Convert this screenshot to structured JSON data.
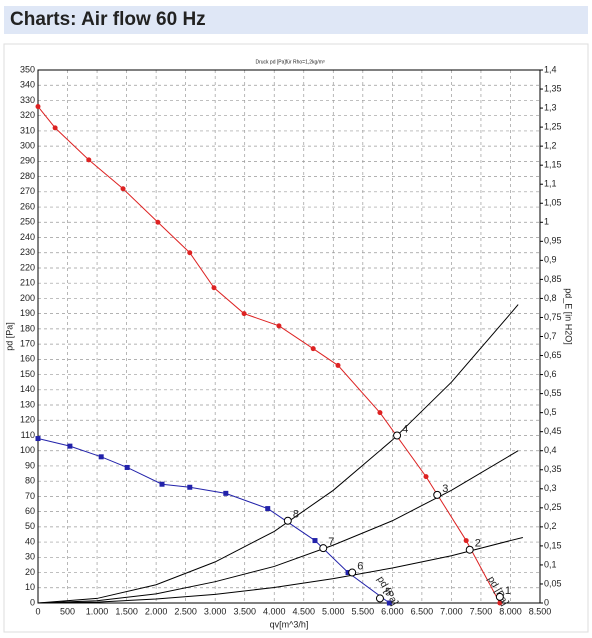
{
  "header": {
    "title": "Charts: Air flow 60 Hz"
  },
  "chart_data": {
    "type": "line",
    "title": "Druck pd [Pa]für Rho=1,2kg/m³",
    "x_label": "qv[m^3/h]",
    "y_label": "pd [Pa]",
    "y2_label": "pd_E [in H2O]",
    "grid": true,
    "xlim": [
      0,
      8500
    ],
    "xticks": [
      0,
      500,
      {
        "value": 1000,
        "label": "1.000"
      },
      {
        "value": 1500,
        "label": "1.500"
      },
      {
        "value": 2000,
        "label": "2.000"
      },
      {
        "value": 2500,
        "label": "2.500"
      },
      {
        "value": 3000,
        "label": "3.000"
      },
      {
        "value": 3500,
        "label": "3.500"
      },
      {
        "value": 4000,
        "label": "4.000"
      },
      {
        "value": 4500,
        "label": "4.500"
      },
      {
        "value": 5000,
        "label": "5.000"
      },
      {
        "value": 5500,
        "label": "5.500"
      },
      {
        "value": 6000,
        "label": "6.000"
      },
      {
        "value": 6500,
        "label": "6.500"
      },
      {
        "value": 7000,
        "label": "7.000"
      },
      {
        "value": 7500,
        "label": "7.500"
      },
      {
        "value": 8000,
        "label": "8.000"
      },
      {
        "value": 8500,
        "label": "8.500"
      }
    ],
    "ylim": [
      0,
      350
    ],
    "yticks": [
      0,
      10,
      20,
      30,
      40,
      50,
      60,
      70,
      80,
      90,
      100,
      110,
      120,
      130,
      140,
      150,
      160,
      170,
      180,
      190,
      200,
      210,
      220,
      230,
      240,
      250,
      260,
      270,
      280,
      290,
      300,
      310,
      320,
      330,
      340,
      350
    ],
    "y2lim": [
      0,
      1.4
    ],
    "y2ticks": [
      0,
      {
        "value": 0.05,
        "label": "0,05"
      },
      {
        "value": 0.1,
        "label": "0,1"
      },
      {
        "value": 0.15,
        "label": "0,15"
      },
      {
        "value": 0.2,
        "label": "0,2"
      },
      {
        "value": 0.25,
        "label": "0,25"
      },
      {
        "value": 0.3,
        "label": "0,3"
      },
      {
        "value": 0.35,
        "label": "0,35"
      },
      {
        "value": 0.4,
        "label": "0,4"
      },
      {
        "value": 0.45,
        "label": "0,45"
      },
      {
        "value": 0.5,
        "label": "0,5"
      },
      {
        "value": 0.55,
        "label": "0,55"
      },
      {
        "value": 0.6,
        "label": "0,6"
      },
      {
        "value": 0.65,
        "label": "0,65"
      },
      {
        "value": 0.7,
        "label": "0,7"
      },
      {
        "value": 0.75,
        "label": "0,75"
      },
      {
        "value": 0.8,
        "label": "0,8"
      },
      {
        "value": 0.85,
        "label": "0,85"
      },
      {
        "value": 0.9,
        "label": "0,9"
      },
      {
        "value": 0.95,
        "label": "0,95"
      },
      1,
      {
        "value": 1.05,
        "label": "1,05"
      },
      {
        "value": 1.1,
        "label": "1,1"
      },
      {
        "value": 1.15,
        "label": "1,15"
      },
      {
        "value": 1.2,
        "label": "1,2"
      },
      {
        "value": 1.25,
        "label": "1,25"
      },
      {
        "value": 1.3,
        "label": "1,3"
      },
      {
        "value": 1.35,
        "label": "1,35"
      },
      {
        "value": 1.4,
        "label": "1,4"
      }
    ],
    "series": [
      {
        "name": "pd [Pa]",
        "color": "#dd2222",
        "marker": "circle",
        "x": [
          0,
          290,
          860,
          1440,
          2030,
          2570,
          2980,
          3490,
          4080,
          4660,
          5080,
          5790,
          6570,
          7250,
          7820
        ],
        "values": [
          326,
          312,
          291,
          272,
          250,
          230,
          207,
          190,
          182,
          167,
          156,
          125,
          83,
          41,
          0
        ]
      },
      {
        "name": "pd [Pa]",
        "color": "#2222aa",
        "marker": "square",
        "x": [
          0,
          540,
          1070,
          1510,
          2100,
          2570,
          3180,
          3890,
          4690,
          5250,
          5950
        ],
        "values": [
          108,
          103,
          96,
          89,
          78,
          76,
          72,
          62,
          41,
          20,
          0
        ]
      },
      {
        "color": "#000000",
        "x": [
          0,
          1000,
          2000,
          3000,
          4000,
          5000,
          6000,
          7000,
          8000,
          8130
        ],
        "values": [
          0,
          3,
          12,
          27,
          47,
          74,
          107,
          145,
          190,
          196
        ]
      },
      {
        "color": "#000000",
        "x": [
          0,
          1000,
          2000,
          3000,
          4000,
          5000,
          6000,
          7000,
          8000,
          8130
        ],
        "values": [
          0,
          1.5,
          6,
          14,
          24,
          38,
          54,
          74,
          97,
          100
        ]
      },
      {
        "color": "#000000",
        "x": [
          0,
          1000,
          2000,
          3000,
          4000,
          5000,
          6000,
          7000,
          8000,
          8210
        ],
        "values": [
          0,
          0.6,
          2.6,
          5.7,
          10.2,
          16,
          23,
          31,
          41,
          43
        ]
      }
    ],
    "points": [
      {
        "label": "1",
        "x": 7820,
        "y": 4
      },
      {
        "label": "2",
        "x": 7310,
        "y": 35
      },
      {
        "label": "3",
        "x": 6760,
        "y": 71
      },
      {
        "label": "4",
        "x": 6080,
        "y": 110
      },
      {
        "label": "5",
        "x": 5790,
        "y": 3
      },
      {
        "label": "6",
        "x": 5320,
        "y": 20
      },
      {
        "label": "7",
        "x": 4830,
        "y": 36
      },
      {
        "label": "8",
        "x": 4230,
        "y": 54
      }
    ]
  }
}
